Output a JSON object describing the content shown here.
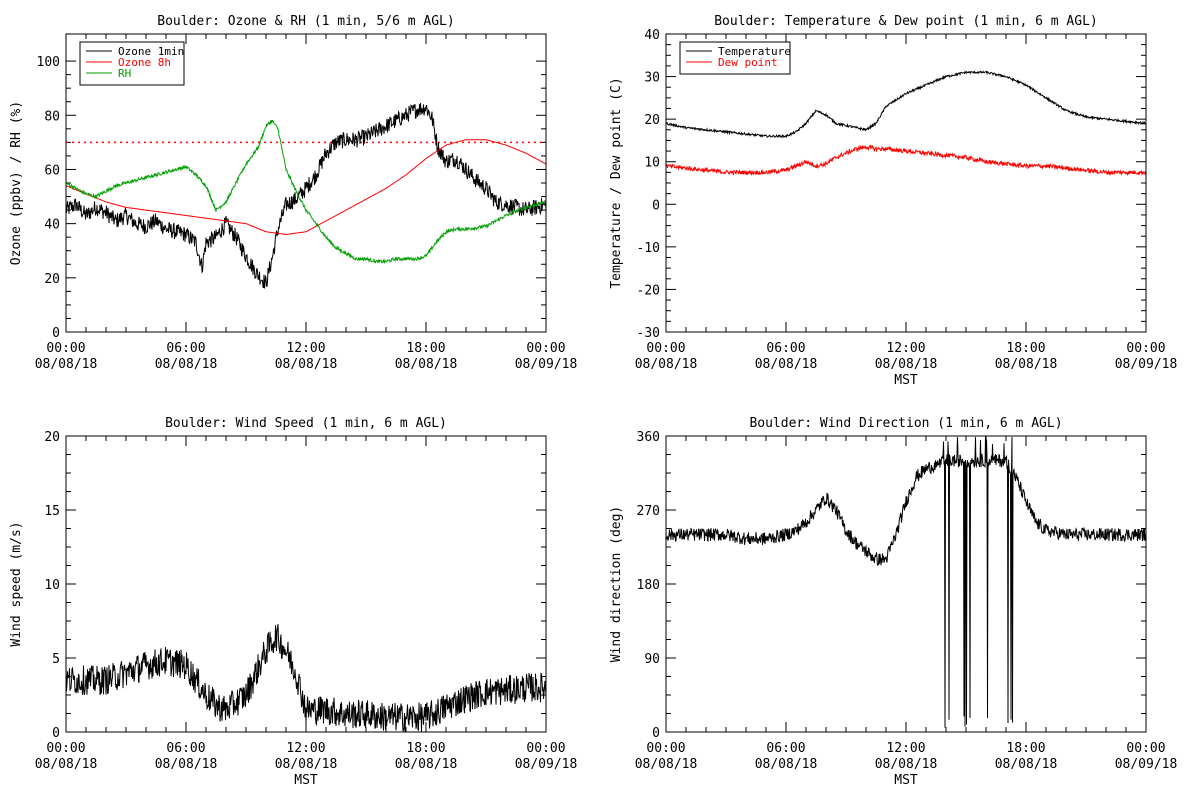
{
  "chart_data": [
    {
      "type": "line",
      "title": "Boulder: Ozone & RH (1 min, 5/6 m AGL)",
      "xlabel": "",
      "ylabel": "Ozone (ppbv) / RH (%)",
      "xlim": [
        0,
        24
      ],
      "ylim": [
        0,
        110
      ],
      "yticks": [
        0,
        20,
        40,
        60,
        80,
        100
      ],
      "xticks": [
        {
          "x": 0,
          "time": "00:00",
          "date": "08/08/18"
        },
        {
          "x": 6,
          "time": "06:00",
          "date": "08/08/18"
        },
        {
          "x": 12,
          "time": "12:00",
          "date": "08/08/18"
        },
        {
          "x": 18,
          "time": "18:00",
          "date": "08/08/18"
        },
        {
          "x": 24,
          "time": "00:00",
          "date": "08/09/18"
        }
      ],
      "legend_position": "top-left",
      "reference_line": {
        "y": 70,
        "color": "#ff0000",
        "style": "dotted"
      },
      "series": [
        {
          "name": "Ozone 1min",
          "color": "#000000",
          "noise": 3,
          "x": [
            0,
            0.5,
            1,
            1.5,
            2,
            2.5,
            3,
            3.5,
            4,
            4.5,
            5,
            5.5,
            6,
            6.5,
            6.8,
            7,
            7.5,
            8,
            8.5,
            9,
            9.5,
            10,
            10.3,
            10.6,
            11,
            11.5,
            12,
            12.5,
            13,
            13.5,
            14,
            14.5,
            15,
            15.5,
            16,
            16.5,
            17,
            17.5,
            18,
            18.3,
            18.6,
            19,
            19.5,
            20,
            20.5,
            21,
            21.5,
            22,
            22.5,
            23,
            23.5,
            24
          ],
          "y": [
            45,
            47,
            43,
            46,
            44,
            41,
            43,
            40,
            39,
            41,
            38,
            37,
            36,
            33,
            24,
            33,
            35,
            40,
            35,
            28,
            22,
            18,
            27,
            38,
            47,
            49,
            53,
            58,
            66,
            70,
            71,
            71,
            72,
            74,
            76,
            78,
            80,
            82,
            83,
            79,
            68,
            63,
            64,
            60,
            56,
            53,
            48,
            47,
            46,
            45,
            46,
            47
          ]
        },
        {
          "name": "Ozone 8h",
          "color": "#ff0000",
          "noise": 0,
          "x": [
            0,
            1,
            2,
            3,
            4,
            5,
            6,
            7,
            8,
            9,
            10,
            11,
            12,
            13,
            14,
            15,
            16,
            17,
            18,
            19,
            20,
            21,
            22,
            23,
            24
          ],
          "y": [
            54,
            51,
            48,
            46,
            45,
            44,
            43,
            42,
            41,
            40,
            37,
            36,
            37,
            41,
            45,
            49,
            53,
            58,
            64,
            69,
            71,
            71,
            69,
            66,
            62
          ]
        },
        {
          "name": "RH",
          "color": "#00a000",
          "noise": 0.6,
          "x": [
            0,
            0.5,
            1,
            1.5,
            2,
            2.5,
            3,
            3.5,
            4,
            4.5,
            5,
            5.5,
            6,
            6.5,
            7,
            7.5,
            8,
            8.5,
            9,
            9.3,
            9.6,
            10,
            10.3,
            10.6,
            11,
            11.5,
            12,
            12.5,
            13,
            13.5,
            14,
            14.5,
            15,
            15.5,
            16,
            16.5,
            17,
            17.5,
            18,
            18.5,
            19,
            19.5,
            20,
            21,
            22,
            23,
            24
          ],
          "y": [
            55,
            53,
            51,
            50,
            52,
            54,
            55,
            56,
            57,
            58,
            59,
            60,
            61,
            58,
            54,
            45,
            48,
            55,
            62,
            65,
            68,
            76,
            78,
            75,
            60,
            52,
            45,
            40,
            35,
            31,
            29,
            27,
            27,
            26,
            26,
            27,
            27,
            27,
            28,
            33,
            37,
            38,
            38,
            39,
            43,
            46,
            48
          ]
        }
      ]
    },
    {
      "type": "line",
      "title": "Boulder: Temperature & Dew point (1 min, 6 m AGL)",
      "xlabel": "MST",
      "ylabel": "Temperature / Dew point (C)",
      "xlim": [
        0,
        24
      ],
      "ylim": [
        -30,
        40
      ],
      "yticks": [
        -30,
        -20,
        -10,
        0,
        10,
        20,
        30,
        40
      ],
      "xticks": [
        {
          "x": 0,
          "time": "00:00",
          "date": "08/08/18"
        },
        {
          "x": 6,
          "time": "06:00",
          "date": "08/08/18"
        },
        {
          "x": 12,
          "time": "12:00",
          "date": "08/08/18"
        },
        {
          "x": 18,
          "time": "18:00",
          "date": "08/08/18"
        },
        {
          "x": 24,
          "time": "00:00",
          "date": "08/09/18"
        }
      ],
      "legend_position": "top-left",
      "series": [
        {
          "name": "Temperature",
          "color": "#000000",
          "noise": 0.25,
          "x": [
            0,
            1,
            2,
            3,
            4,
            5,
            6,
            6.5,
            7,
            7.5,
            8,
            8.5,
            9,
            9.5,
            10,
            10.5,
            11,
            12,
            13,
            14,
            15,
            16,
            17,
            18,
            19,
            20,
            21,
            22,
            23,
            24
          ],
          "y": [
            19,
            18,
            17.5,
            17,
            16.5,
            16,
            16,
            17,
            19,
            22,
            21,
            19,
            18.5,
            18,
            17.5,
            19,
            23,
            26,
            28,
            30,
            31,
            31,
            30,
            28,
            25,
            22,
            20.5,
            20,
            19.5,
            19
          ]
        },
        {
          "name": "Dew point",
          "color": "#ff0000",
          "noise": 0.5,
          "x": [
            0,
            1,
            2,
            3,
            4,
            5,
            6,
            6.5,
            7,
            7.5,
            8,
            8.5,
            9,
            9.5,
            10,
            10.5,
            11,
            12,
            13,
            14,
            15,
            16,
            17,
            18,
            19,
            20,
            21,
            22,
            23,
            24
          ],
          "y": [
            9,
            8.5,
            8,
            7.5,
            7.5,
            7.5,
            8,
            9,
            10,
            9,
            9.5,
            11,
            12,
            13,
            13.5,
            13,
            13,
            12.5,
            12,
            11.5,
            11,
            10,
            9.5,
            9,
            9,
            8.5,
            8,
            7.5,
            7.5,
            7.5
          ]
        }
      ]
    },
    {
      "type": "line",
      "title": "Boulder: Wind Speed (1 min, 6 m AGL)",
      "xlabel": "MST",
      "ylabel": "Wind speed (m/s)",
      "xlim": [
        0,
        24
      ],
      "ylim": [
        0,
        20
      ],
      "yticks": [
        0,
        5,
        10,
        15,
        20
      ],
      "xticks": [
        {
          "x": 0,
          "time": "00:00",
          "date": "08/08/18"
        },
        {
          "x": 6,
          "time": "06:00",
          "date": "08/08/18"
        },
        {
          "x": 12,
          "time": "12:00",
          "date": "08/08/18"
        },
        {
          "x": 18,
          "time": "18:00",
          "date": "08/08/18"
        },
        {
          "x": 24,
          "time": "00:00",
          "date": "08/09/18"
        }
      ],
      "series": [
        {
          "name": "",
          "color": "#000000",
          "noise": 1.0,
          "x": [
            0,
            1,
            2,
            3,
            4,
            5,
            6,
            6.5,
            7,
            7.5,
            8,
            8.5,
            9,
            9.5,
            10,
            10.5,
            11,
            11.5,
            12,
            12.5,
            13,
            14,
            15,
            16,
            17,
            18,
            18.5,
            19,
            20,
            21,
            22,
            23,
            24
          ],
          "y": [
            3.5,
            3.5,
            3.5,
            4,
            4.5,
            4.8,
            4.5,
            3.5,
            2.5,
            1.8,
            1.5,
            2,
            2.5,
            4,
            5.5,
            6.5,
            5.5,
            4,
            1.5,
            1.5,
            1.5,
            1.2,
            1.2,
            1,
            1,
            1,
            1.3,
            1.7,
            2.3,
            2.7,
            2.8,
            3,
            3
          ]
        }
      ]
    },
    {
      "type": "line",
      "title": "Boulder: Wind Direction (1 min, 6 m AGL)",
      "xlabel": "MST",
      "ylabel": "Wind direction (deg)",
      "xlim": [
        0,
        24
      ],
      "ylim": [
        0,
        360
      ],
      "yticks": [
        0,
        90,
        180,
        270,
        360
      ],
      "xticks": [
        {
          "x": 0,
          "time": "00:00",
          "date": "08/08/18"
        },
        {
          "x": 6,
          "time": "06:00",
          "date": "08/08/18"
        },
        {
          "x": 12,
          "time": "12:00",
          "date": "08/08/18"
        },
        {
          "x": 18,
          "time": "18:00",
          "date": "08/08/18"
        },
        {
          "x": 24,
          "time": "00:00",
          "date": "08/09/18"
        }
      ],
      "series": [
        {
          "name": "",
          "color": "#000000",
          "noise": 8,
          "wild": [
            13.5,
            17.5
          ],
          "x": [
            0,
            1,
            2,
            3,
            4,
            5,
            6,
            6.5,
            7,
            7.5,
            8,
            8.5,
            9,
            9.5,
            10,
            10.5,
            11,
            11.5,
            12,
            12.5,
            13,
            14,
            15,
            16,
            17,
            17.5,
            18,
            18.5,
            19,
            20,
            21,
            22,
            23,
            24
          ],
          "y": [
            240,
            240,
            240,
            240,
            235,
            235,
            240,
            245,
            255,
            270,
            285,
            270,
            245,
            230,
            220,
            210,
            210,
            240,
            280,
            310,
            320,
            330,
            330,
            330,
            330,
            310,
            280,
            255,
            245,
            240,
            240,
            240,
            240,
            240
          ]
        }
      ]
    }
  ]
}
